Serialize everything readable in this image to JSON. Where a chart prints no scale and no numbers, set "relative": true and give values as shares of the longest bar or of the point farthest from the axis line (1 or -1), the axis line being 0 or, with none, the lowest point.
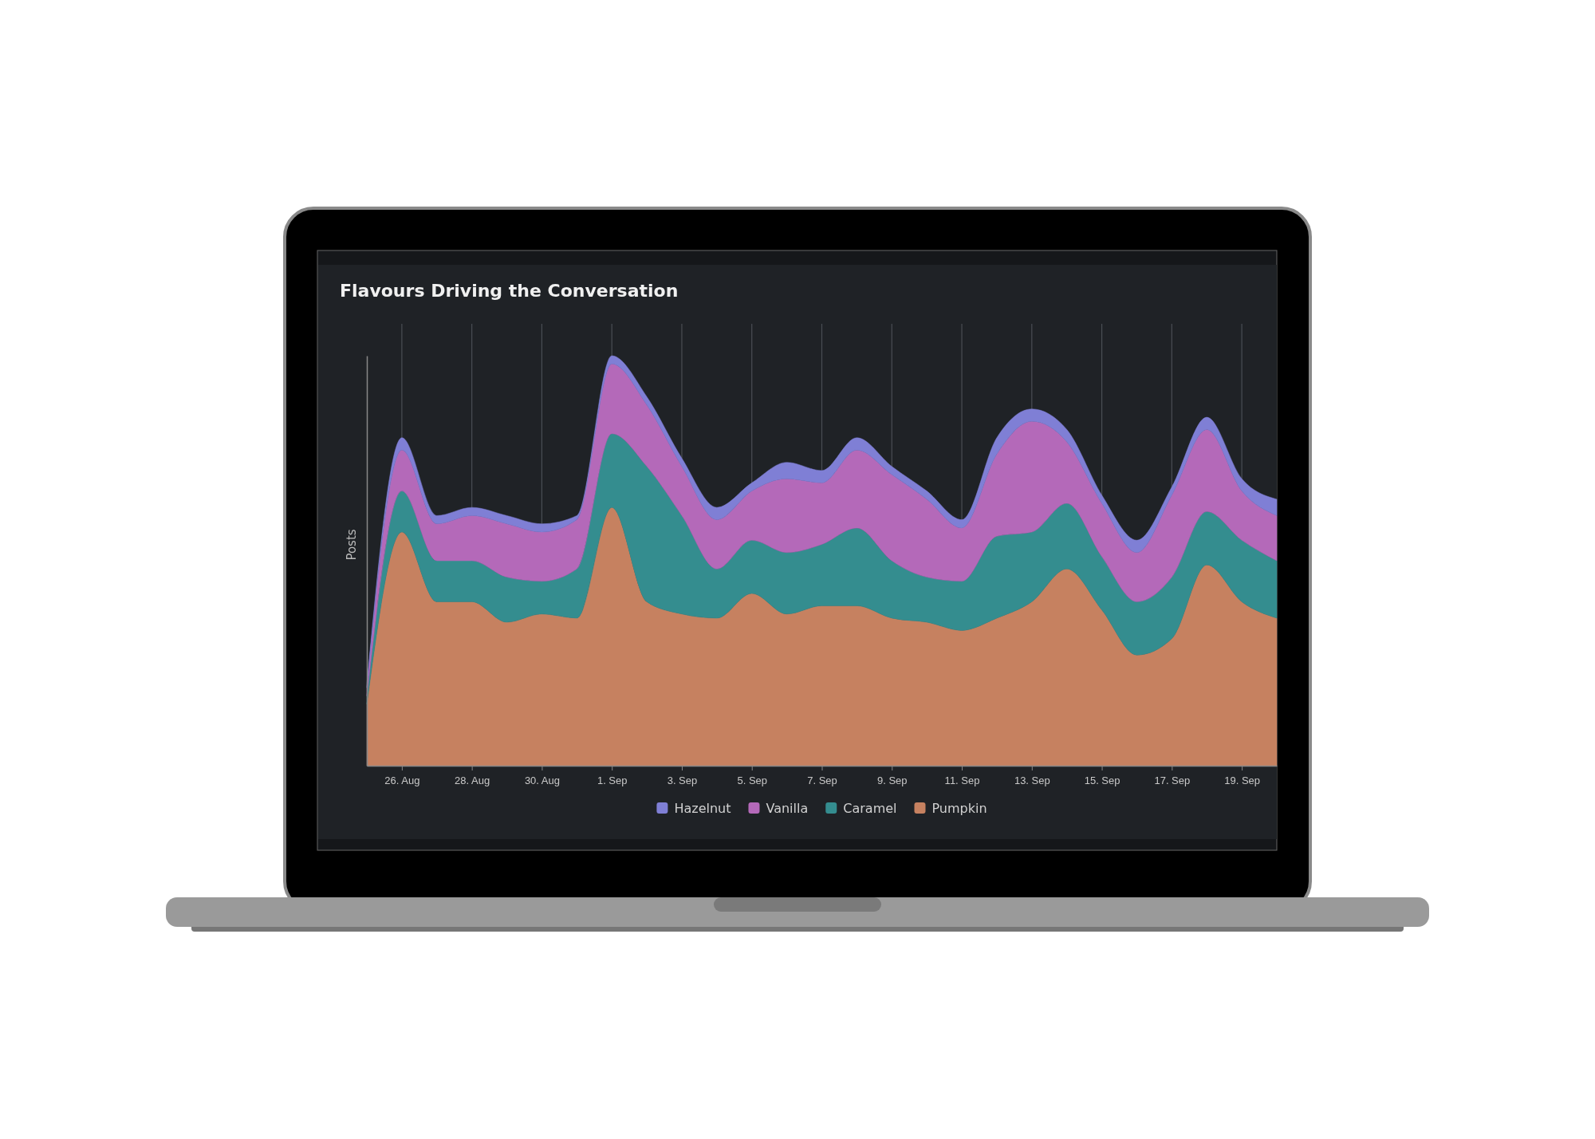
{
  "chart_data": {
    "type": "area",
    "title": "Flavours Driving the Conversation",
    "ylabel": "Posts",
    "stacked": true,
    "relative": true,
    "grid": "x",
    "legend": "bottom",
    "x": [
      "--08-25",
      "--08-26",
      "--08-27",
      "--08-28",
      "--08-29",
      "--08-30",
      "--08-31",
      "--09-01",
      "--09-02",
      "--09-03",
      "--09-04",
      "--09-05",
      "--09-06",
      "--09-07",
      "--09-08",
      "--09-09",
      "--09-10",
      "--09-11",
      "--09-12",
      "--09-13",
      "--09-14",
      "--09-15",
      "--09-16",
      "--09-17",
      "--09-18",
      "--09-19",
      "--09-20"
    ],
    "xlim": [
      "--08-25",
      "--09-20"
    ],
    "xticks": [
      {
        "value": "--08-26",
        "label": "26. Aug"
      },
      {
        "value": "--08-28",
        "label": "28. Aug"
      },
      {
        "value": "--08-30",
        "label": "30. Aug"
      },
      {
        "value": "--09-01",
        "label": "1. Sep"
      },
      {
        "value": "--09-03",
        "label": "3. Sep"
      },
      {
        "value": "--09-05",
        "label": "5. Sep"
      },
      {
        "value": "--09-07",
        "label": "7. Sep"
      },
      {
        "value": "--09-09",
        "label": "9. Sep"
      },
      {
        "value": "--09-11",
        "label": "11. Sep"
      },
      {
        "value": "--09-13",
        "label": "13. Sep"
      },
      {
        "value": "--09-15",
        "label": "15. Sep"
      },
      {
        "value": "--09-17",
        "label": "17. Sep"
      },
      {
        "value": "--09-19",
        "label": "19. Sep"
      }
    ],
    "series": [
      {
        "name": "Pumpkin",
        "color": "#c68160",
        "values": [
          0.15,
          0.57,
          0.4,
          0.4,
          0.35,
          0.37,
          0.36,
          0.63,
          0.4,
          0.37,
          0.36,
          0.42,
          0.37,
          0.39,
          0.39,
          0.36,
          0.35,
          0.33,
          0.36,
          0.4,
          0.48,
          0.38,
          0.27,
          0.31,
          0.49,
          0.4,
          0.36
        ]
      },
      {
        "name": "Caramel",
        "color": "#348d8f",
        "values": [
          0.02,
          0.1,
          0.1,
          0.1,
          0.11,
          0.08,
          0.12,
          0.18,
          0.33,
          0.24,
          0.12,
          0.13,
          0.15,
          0.15,
          0.19,
          0.14,
          0.11,
          0.12,
          0.2,
          0.17,
          0.16,
          0.13,
          0.13,
          0.15,
          0.13,
          0.15,
          0.14
        ]
      },
      {
        "name": "Vanilla",
        "color": "#b469b9",
        "values": [
          0.02,
          0.1,
          0.09,
          0.11,
          0.13,
          0.12,
          0.12,
          0.17,
          0.15,
          0.12,
          0.12,
          0.12,
          0.18,
          0.15,
          0.19,
          0.21,
          0.19,
          0.13,
          0.2,
          0.27,
          0.15,
          0.13,
          0.12,
          0.2,
          0.2,
          0.12,
          0.11
        ]
      },
      {
        "name": "Hazelnut",
        "color": "#7f7fd5",
        "values": [
          0.01,
          0.03,
          0.02,
          0.02,
          0.02,
          0.02,
          0.01,
          0.02,
          0.02,
          0.02,
          0.03,
          0.02,
          0.04,
          0.03,
          0.03,
          0.02,
          0.02,
          0.02,
          0.04,
          0.03,
          0.03,
          0.02,
          0.03,
          0.02,
          0.03,
          0.03,
          0.04
        ]
      }
    ]
  }
}
